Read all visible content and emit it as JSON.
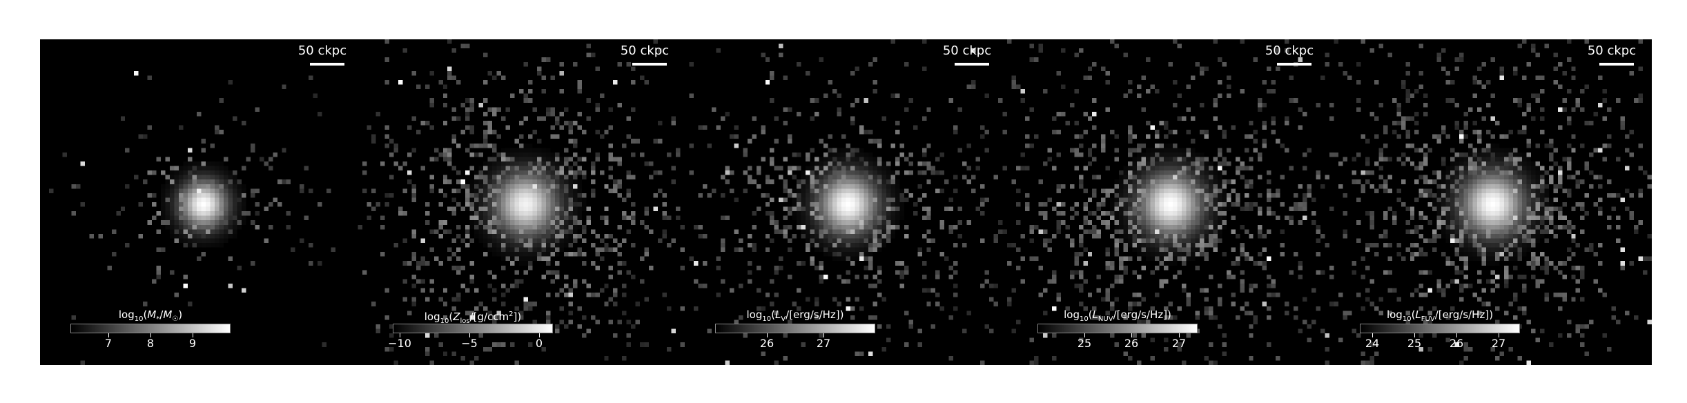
{
  "figure": {
    "scale_bar_label": "50 ckpc",
    "panels": [
      {
        "id": "stellar-mass",
        "cbar_title_html": "log<sub>10</sub>(<i>M</i><sub>*</sub>/<i>M</i><sub>☉</sub>)",
        "cbar_min": 6.1,
        "cbar_max": 9.9,
        "ticks": [
          7,
          8,
          9
        ],
        "tick_labels": [
          "7",
          "8",
          "9"
        ],
        "seed": 11,
        "spread": 0.55,
        "density": 0.35,
        "core_brightness": 1.0
      },
      {
        "id": "metallicity",
        "cbar_title_html": "log<sub>10</sub>(<i>Z</i><sub>los</sub>/[g/ccm<sup>2</sup>])",
        "cbar_min": -10.5,
        "cbar_max": 1.0,
        "ticks": [
          -10,
          -5,
          0
        ],
        "tick_labels": [
          "−10",
          "−5",
          "0"
        ],
        "seed": 23,
        "spread": 1.0,
        "density": 0.75,
        "core_brightness": 0.95
      },
      {
        "id": "luminosity-v",
        "cbar_title_html": "log<sub>10</sub>(<i>L</i><sub>V</sub>/[erg/s/Hz])",
        "cbar_min": 25.1,
        "cbar_max": 27.9,
        "ticks": [
          26,
          27
        ],
        "tick_labels": [
          "26",
          "27"
        ],
        "seed": 37,
        "spread": 0.9,
        "density": 0.6,
        "core_brightness": 1.0
      },
      {
        "id": "luminosity-nuv",
        "cbar_title_html": "log<sub>10</sub>(<i>L</i><sub>NUV</sub>/[erg/s/Hz])",
        "cbar_min": 24.0,
        "cbar_max": 27.4,
        "ticks": [
          25,
          26,
          27
        ],
        "tick_labels": [
          "25",
          "26",
          "27"
        ],
        "seed": 53,
        "spread": 1.0,
        "density": 0.75,
        "core_brightness": 1.0
      },
      {
        "id": "luminosity-fuv",
        "cbar_title_html": "log<sub>10</sub>(<i>L</i><sub>FUV</sub>/[erg/s/Hz])",
        "cbar_min": 23.7,
        "cbar_max": 27.5,
        "ticks": [
          24,
          25,
          26,
          27
        ],
        "tick_labels": [
          "24",
          "25",
          "26",
          "27"
        ],
        "seed": 71,
        "spread": 1.0,
        "density": 0.78,
        "core_brightness": 1.0
      }
    ]
  }
}
